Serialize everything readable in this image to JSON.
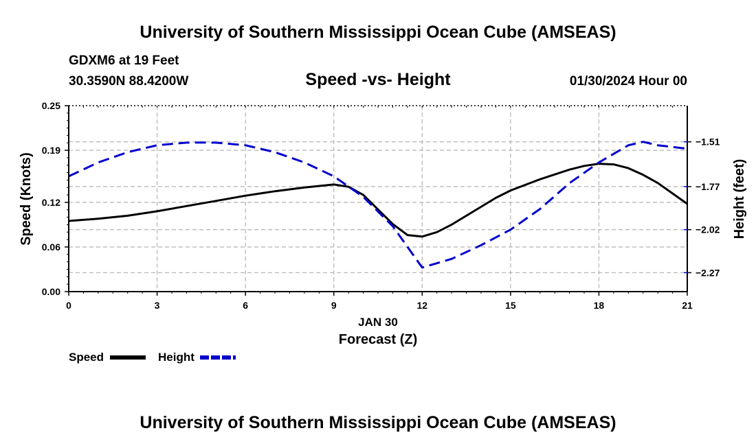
{
  "header": {
    "title": "University of Southern Mississippi Ocean Cube (AMSEAS)",
    "station": "GDXM6 at 19 Feet",
    "coords": "30.3590N  88.4200W",
    "subtitle": "Speed -vs- Height",
    "datetime": "01/30/2024 Hour 00"
  },
  "footer": {
    "title": "University of Southern Mississippi Ocean Cube (AMSEAS)"
  },
  "chart_data": {
    "type": "line",
    "title": "Speed -vs- Height",
    "xlabel": "Forecast (Z)",
    "date_label": "JAN 30",
    "ylabel": "Speed (Knots)",
    "y2label": "Height (feet)",
    "xlim": [
      0,
      21
    ],
    "ylim": [
      0,
      0.25
    ],
    "y2lim": [
      -2.38,
      -1.3
    ],
    "grid": true,
    "x_ticks": [
      "0",
      "3",
      "6",
      "9",
      "12",
      "15",
      "18",
      "21"
    ],
    "y_ticks": [
      "0.00",
      "0.06",
      "0.12",
      "0.19",
      "0.25"
    ],
    "y2_ticks": [
      "-1.51",
      "-1.77",
      "-2.02",
      "-2.27"
    ],
    "legend": {
      "placement": "bottom-left",
      "speed_label": "Speed",
      "height_label": "Height"
    },
    "series": [
      {
        "name": "Speed",
        "axis": "left",
        "color": "#000000",
        "style": "solid",
        "x": [
          0,
          1,
          2,
          3,
          4,
          5,
          6,
          7,
          8,
          9,
          9.5,
          10,
          11,
          11.5,
          12,
          12.5,
          13,
          14,
          14.5,
          15,
          16,
          17,
          17.5,
          18,
          18.5,
          19,
          19.5,
          20,
          21
        ],
        "values": [
          0.095,
          0.098,
          0.102,
          0.108,
          0.115,
          0.122,
          0.129,
          0.135,
          0.14,
          0.144,
          0.141,
          0.13,
          0.091,
          0.076,
          0.074,
          0.08,
          0.09,
          0.114,
          0.126,
          0.136,
          0.151,
          0.164,
          0.169,
          0.172,
          0.171,
          0.166,
          0.157,
          0.146,
          0.118
        ]
      },
      {
        "name": "Height",
        "axis": "right",
        "color": "#0000CC",
        "style": "dashed",
        "x": [
          0,
          1,
          2,
          3,
          4,
          4.5,
          5,
          6,
          7,
          8,
          9,
          10,
          11,
          12,
          13,
          14,
          15,
          16,
          17,
          18,
          19,
          19.5,
          20,
          21
        ],
        "values": [
          -1.71,
          -1.63,
          -1.57,
          -1.53,
          -1.515,
          -1.514,
          -1.515,
          -1.53,
          -1.57,
          -1.63,
          -1.71,
          -1.83,
          -2.0,
          -2.24,
          -2.19,
          -2.11,
          -2.02,
          -1.9,
          -1.75,
          -1.63,
          -1.53,
          -1.51,
          -1.53,
          -1.55
        ]
      }
    ]
  }
}
